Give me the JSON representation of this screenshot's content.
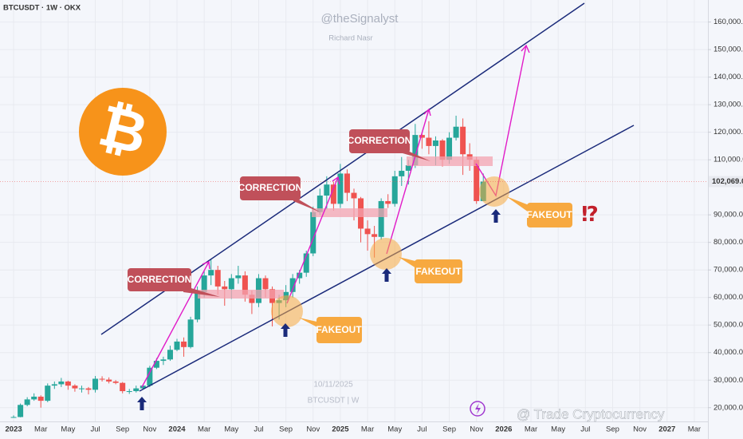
{
  "chart_data": {
    "type": "candlestick",
    "symbol_info": "BTCUSDT · 1W · OKX",
    "author": "@theSignalyst",
    "author_name": "Richard Nasr",
    "date": "10/11/2025",
    "chart_symbol": "BTCUSDT | W",
    "watermark": "@ Trade Cryptocurrency",
    "logo": "₿",
    "annotations": [
      "CORRECTION",
      "CORRECTION",
      "CORRECTION",
      "FAKEOUT",
      "FAKEOUT",
      "FAKEOUT",
      "⁉"
    ],
    "up_color": "#26a69a",
    "down_color": "#ef5350",
    "xlim": [
      -1,
      51
    ],
    "xticks": [
      {
        "value": 0,
        "label": "2023"
      },
      {
        "value": 2,
        "label": "Mar"
      },
      {
        "value": 4,
        "label": "May"
      },
      {
        "value": 6,
        "label": "Jul"
      },
      {
        "value": 8,
        "label": "Sep"
      },
      {
        "value": 10,
        "label": "Nov"
      },
      {
        "value": 12,
        "label": "2024"
      },
      {
        "value": 14,
        "label": "Mar"
      },
      {
        "value": 16,
        "label": "May"
      },
      {
        "value": 18,
        "label": "Jul"
      },
      {
        "value": 20,
        "label": "Sep"
      },
      {
        "value": 22,
        "label": "Nov"
      },
      {
        "value": 24,
        "label": "2025"
      },
      {
        "value": 26,
        "label": "Mar"
      },
      {
        "value": 28,
        "label": "May"
      },
      {
        "value": 30,
        "label": "Jul"
      },
      {
        "value": 32,
        "label": "Sep"
      },
      {
        "value": 34,
        "label": "Nov"
      },
      {
        "value": 36,
        "label": "2026"
      },
      {
        "value": 38,
        "label": "Mar"
      },
      {
        "value": 40,
        "label": "May"
      },
      {
        "value": 42,
        "label": "Jul"
      },
      {
        "value": 44,
        "label": "Sep"
      },
      {
        "value": 46,
        "label": "Nov"
      },
      {
        "value": 48,
        "label": "2027"
      },
      {
        "value": 50,
        "label": "Mar"
      }
    ],
    "ylim": [
      15000,
      168000
    ],
    "yticks": [
      {
        "value": 20000,
        "label": "20,000.0"
      },
      {
        "value": 30000,
        "label": "30,000.0"
      },
      {
        "value": 40000,
        "label": "40,000.0"
      },
      {
        "value": 50000,
        "label": "50,000.0"
      },
      {
        "value": 60000,
        "label": "60,000.0"
      },
      {
        "value": 70000,
        "label": "70,000.0"
      },
      {
        "value": 80000,
        "label": "80,000.0"
      },
      {
        "value": 90000,
        "label": "90,000.0"
      },
      {
        "value": 110000,
        "label": "110,000.0"
      },
      {
        "value": 120000,
        "label": "120,000.0"
      },
      {
        "value": 130000,
        "label": "130,000.0"
      },
      {
        "value": 140000,
        "label": "140,000.0"
      },
      {
        "value": 150000,
        "label": "150,000.0"
      },
      {
        "value": 160000,
        "label": "160,000.0"
      }
    ],
    "last_price": {
      "value": 102069,
      "label": "102,069.0"
    },
    "x": [
      0,
      0.5,
      1,
      1.5,
      2,
      2.5,
      3,
      3.5,
      4,
      4.5,
      5,
      5.5,
      6,
      6.5,
      7,
      7.5,
      8,
      8.5,
      9,
      9.5,
      10,
      10.5,
      11,
      11.5,
      12,
      12.5,
      13,
      13.5,
      14,
      14.5,
      15,
      15.5,
      16,
      16.5,
      17,
      17.5,
      18,
      18.5,
      19,
      19.5,
      20,
      20.5,
      21,
      21.5,
      22,
      22.5,
      23,
      23.5,
      24,
      24.5,
      25,
      25.5,
      26,
      26.5,
      27,
      27.5,
      28,
      28.5,
      29,
      29.5,
      30,
      30.5,
      31,
      31.5,
      32,
      32.5,
      33,
      33.5,
      34,
      34.5
    ],
    "open": [
      16500,
      16600,
      21000,
      23000,
      24000,
      22500,
      28000,
      28500,
      29500,
      28000,
      27000,
      27000,
      26500,
      30500,
      30200,
      29500,
      29000,
      26000,
      26000,
      27000,
      28000,
      34500,
      37000,
      37500,
      41000,
      44000,
      42000,
      52000,
      62000,
      68000,
      70000,
      64000,
      63000,
      67000,
      68000,
      61000,
      58000,
      67000,
      63000,
      58000,
      59000,
      62000,
      67000,
      69000,
      76000,
      91000,
      97000,
      101000,
      94000,
      105000,
      98000,
      96000,
      85000,
      83000,
      82000,
      95000,
      94000,
      104000,
      106000,
      108000,
      119000,
      118000,
      115000,
      117000,
      110000,
      118000,
      122000,
      112000,
      110000,
      95000
    ],
    "high": [
      17200,
      21500,
      23800,
      25200,
      24500,
      28800,
      29500,
      30800,
      29800,
      28500,
      28000,
      27500,
      31500,
      31400,
      31000,
      30000,
      29300,
      26800,
      28000,
      28500,
      35200,
      38000,
      38500,
      42500,
      45000,
      45500,
      53000,
      64000,
      69500,
      73800,
      71500,
      66000,
      68500,
      71500,
      69500,
      62500,
      68500,
      68000,
      64000,
      61000,
      64500,
      68500,
      70000,
      77000,
      93000,
      99500,
      104000,
      102000,
      108500,
      106500,
      99500,
      96500,
      88000,
      86000,
      96000,
      97500,
      106000,
      111000,
      110000,
      123000,
      120000,
      124000,
      118500,
      117500,
      120000,
      126000,
      125000,
      116000,
      111000,
      105000
    ],
    "low": [
      16300,
      16500,
      20500,
      22500,
      20000,
      22000,
      26800,
      27500,
      26500,
      25800,
      25500,
      24800,
      25500,
      29500,
      28800,
      28500,
      25200,
      25000,
      25500,
      26500,
      27500,
      34000,
      35500,
      37000,
      40500,
      38500,
      41500,
      51000,
      60000,
      64500,
      61000,
      57000,
      59500,
      65000,
      58500,
      54000,
      56500,
      60000,
      49500,
      52000,
      56500,
      60000,
      65000,
      67500,
      75000,
      90000,
      92000,
      91500,
      92500,
      95000,
      88000,
      80000,
      77000,
      74500,
      81000,
      92500,
      93000,
      100500,
      101000,
      107000,
      114000,
      112000,
      108000,
      107500,
      108500,
      117000,
      104500,
      106000,
      94000,
      95500
    ],
    "close": [
      16600,
      21000,
      23000,
      24000,
      22500,
      28000,
      28500,
      29500,
      28000,
      27000,
      27000,
      26500,
      30500,
      30200,
      29500,
      29000,
      26000,
      26000,
      27000,
      28000,
      34500,
      37000,
      37500,
      41000,
      44000,
      42000,
      52000,
      62000,
      68000,
      70000,
      64000,
      63000,
      67000,
      68000,
      61000,
      58000,
      67000,
      63000,
      58000,
      59000,
      62000,
      67000,
      69000,
      76000,
      91000,
      97000,
      101000,
      94000,
      105000,
      98000,
      96000,
      85000,
      83000,
      82000,
      95000,
      94000,
      104000,
      106000,
      108000,
      119000,
      118000,
      115000,
      117000,
      110000,
      118000,
      122000,
      112000,
      110000,
      95000,
      102069
    ]
  }
}
